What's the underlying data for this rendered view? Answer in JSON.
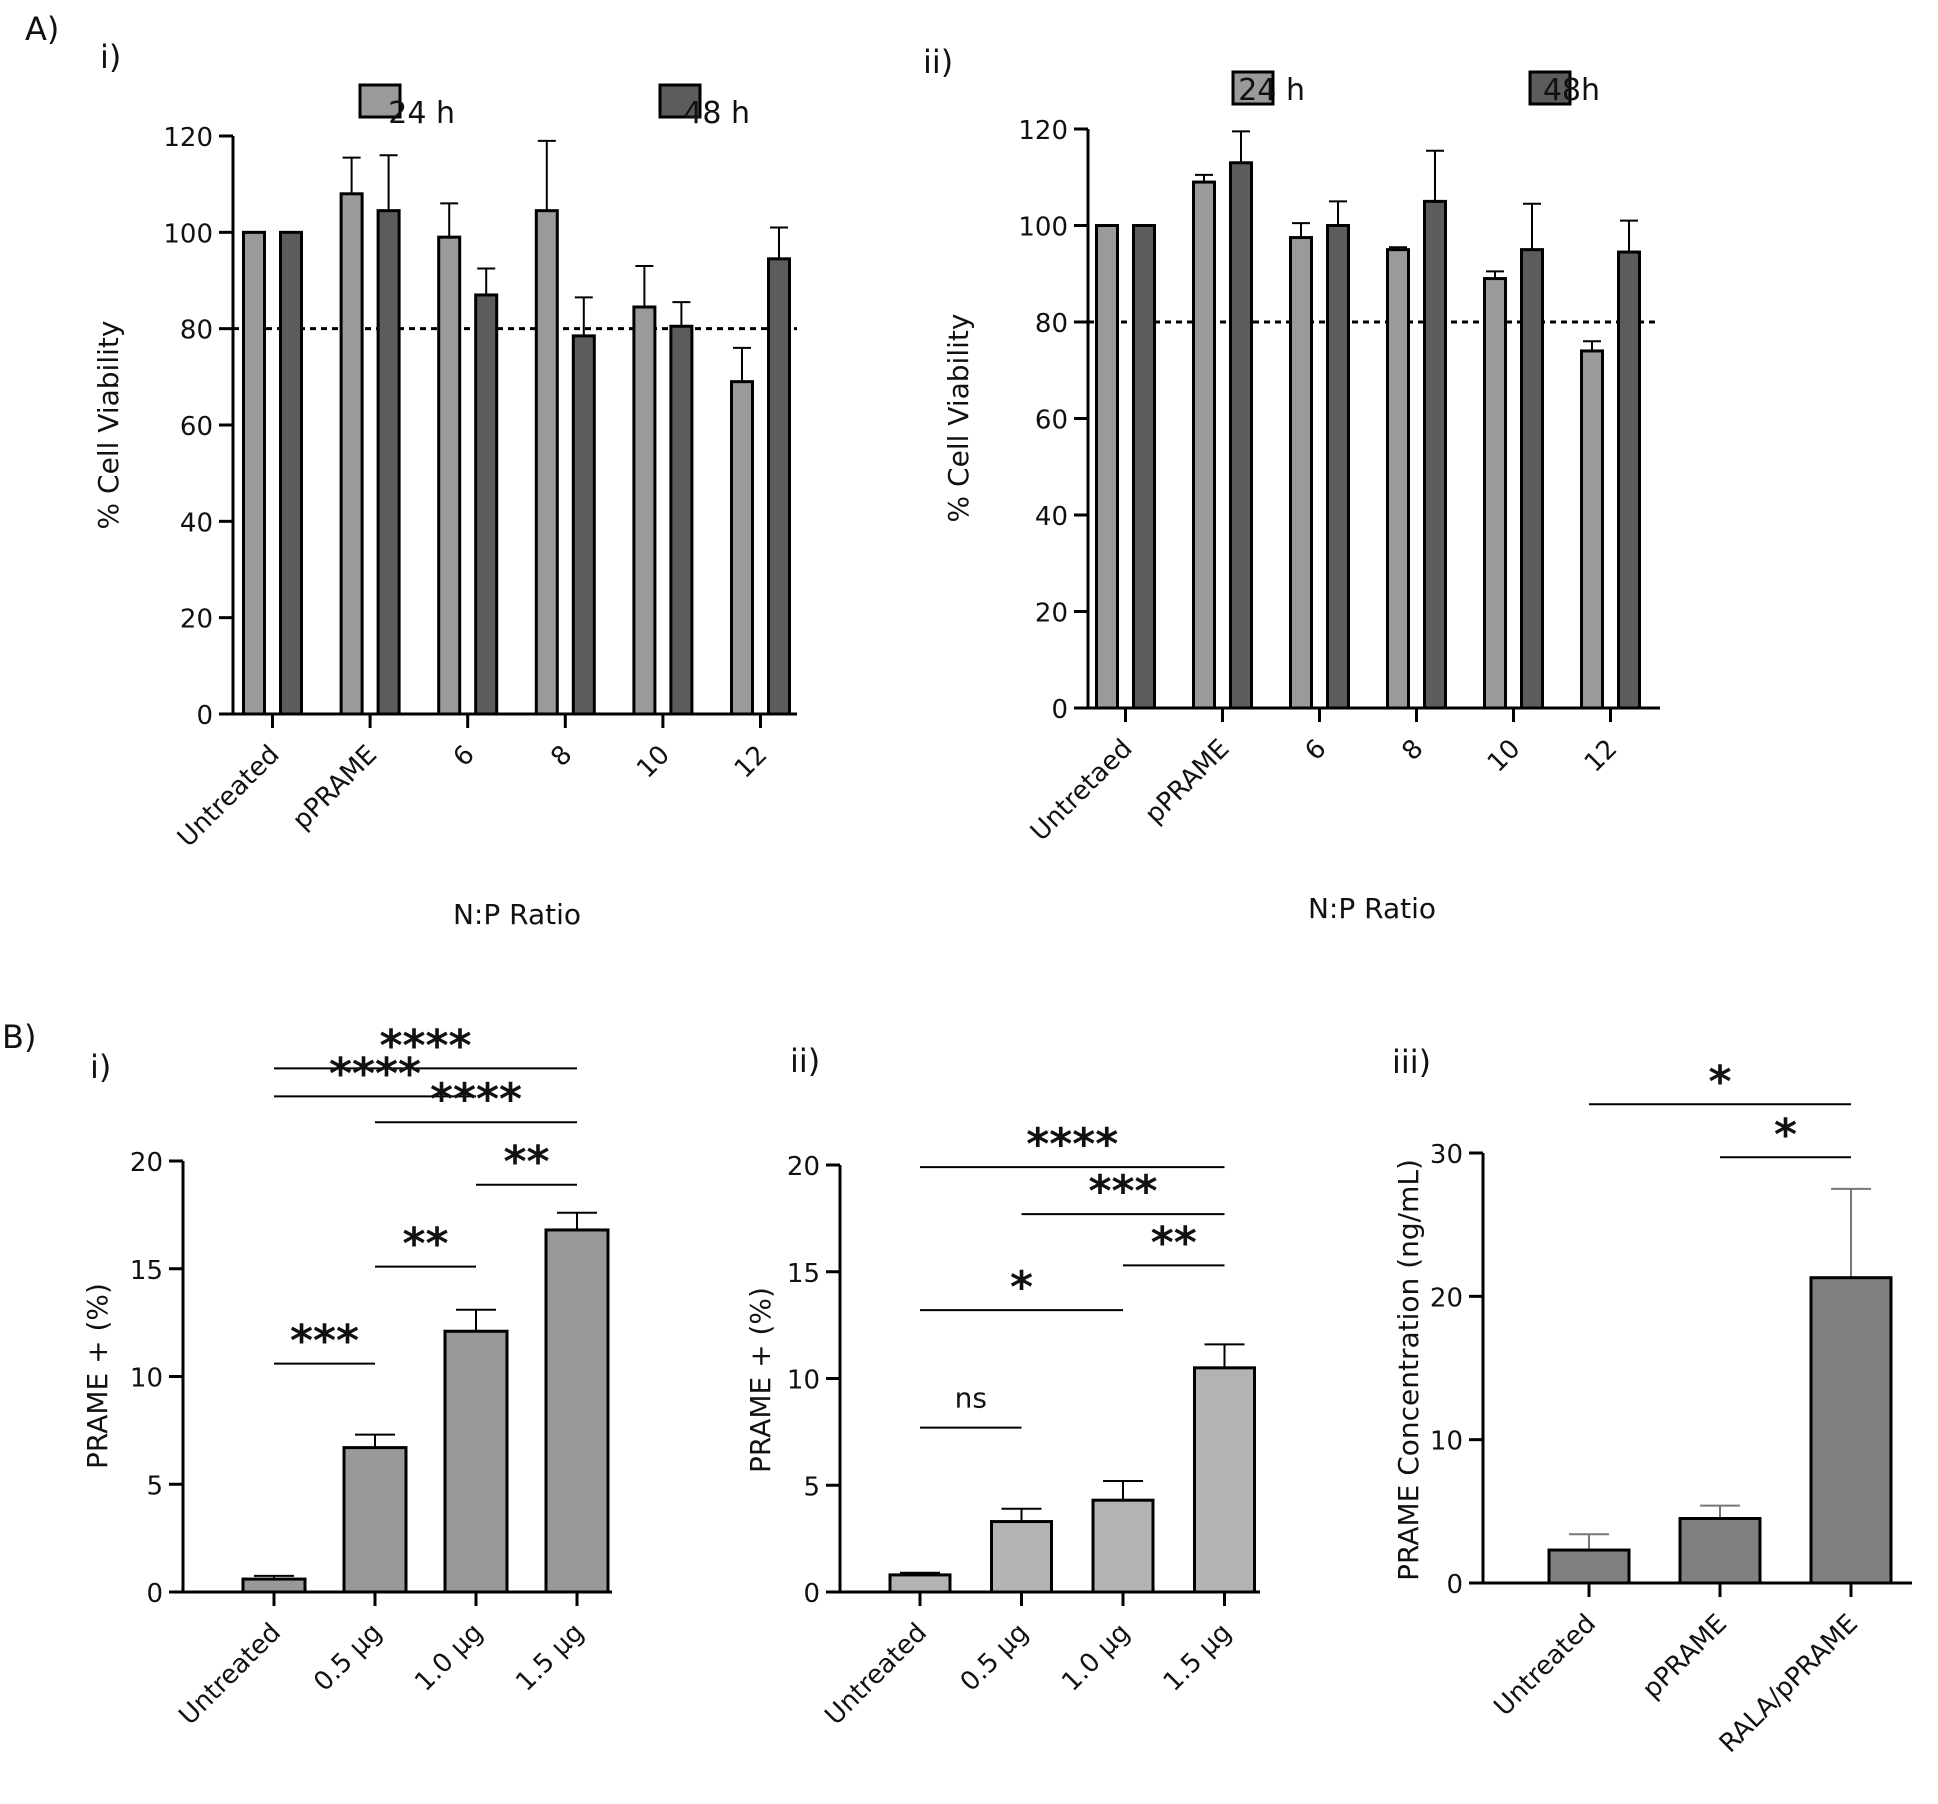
{
  "figure": {
    "section_a": "A)",
    "section_b": "B)"
  },
  "colors": {
    "gray_24h": "#9a9a9a",
    "gray_48h": "#5c5c5c",
    "b_i_bar": "#999999",
    "b_ii_bar": "#b3b3b3",
    "b_iii_bar": "#808080",
    "axis": "#000000"
  },
  "chart_data": [
    {
      "panel": "i)",
      "type": "bar",
      "categories": [
        "Untreated",
        "pPRAME",
        "6",
        "8",
        "10",
        "12"
      ],
      "series": [
        {
          "name": "24 h",
          "values": [
            100,
            108,
            99,
            104.5,
            84.5,
            69
          ],
          "errors": [
            0,
            7.5,
            7,
            14.5,
            8.5,
            7
          ]
        },
        {
          "name": "48 h",
          "values": [
            100,
            104.5,
            87,
            78.5,
            80.5,
            94.5
          ],
          "errors": [
            0,
            11.5,
            5.5,
            8,
            5,
            6.5
          ]
        }
      ],
      "xlabel": "N:P Ratio",
      "ylabel": "% Cell Viability",
      "ylim": [
        0,
        120
      ],
      "yticks": [
        0,
        20,
        40,
        60,
        80,
        100,
        120
      ],
      "reference_line": 80,
      "legend": "top"
    },
    {
      "panel": "ii)",
      "type": "bar",
      "categories": [
        "Untretaed",
        "pPRAME",
        "6",
        "8",
        "10",
        "12"
      ],
      "series": [
        {
          "name": "24 h",
          "values": [
            100,
            109,
            97.5,
            95,
            89,
            74
          ],
          "errors": [
            0,
            1.5,
            3,
            0.5,
            1.5,
            2
          ]
        },
        {
          "name": "48h",
          "values": [
            100,
            113,
            100,
            105,
            95,
            94.5
          ],
          "errors": [
            0,
            6.5,
            5,
            10.5,
            9.5,
            6.5
          ]
        }
      ],
      "xlabel": "N:P Ratio",
      "ylabel": "% Cell Viability",
      "ylim": [
        0,
        120
      ],
      "yticks": [
        0,
        20,
        40,
        60,
        80,
        100,
        120
      ],
      "reference_line": 80,
      "legend": "top"
    },
    {
      "panel": "i)",
      "type": "bar",
      "categories": [
        "Untreated",
        "0.5 μg",
        "1.0 μg",
        "1.5 μg"
      ],
      "values": [
        0.6,
        6.7,
        12.1,
        16.8
      ],
      "errors": [
        0.15,
        0.6,
        1.0,
        0.8
      ],
      "ylabel": "PRAME + (%)",
      "ylim": [
        0,
        20
      ],
      "yticks": [
        0,
        5,
        10,
        15,
        20
      ],
      "significance": [
        {
          "from": 0,
          "to": 3,
          "label": "****",
          "y": 24.3
        },
        {
          "from": 0,
          "to": 2,
          "label": "****",
          "y": 23.0
        },
        {
          "from": 1,
          "to": 3,
          "label": "****",
          "y": 21.8
        },
        {
          "from": 2,
          "to": 3,
          "label": "**",
          "y": 18.9
        },
        {
          "from": 1,
          "to": 2,
          "label": "**",
          "y": 15.1
        },
        {
          "from": 0,
          "to": 1,
          "label": "***",
          "y": 10.6
        }
      ]
    },
    {
      "panel": "ii)",
      "type": "bar",
      "categories": [
        "Untreated",
        "0.5 μg",
        "1.0 μg",
        "1.5 μg"
      ],
      "values": [
        0.8,
        3.3,
        4.3,
        10.5
      ],
      "errors": [
        0.1,
        0.6,
        0.9,
        1.1
      ],
      "ylabel": "PRAME + (%)",
      "ylim": [
        0,
        20
      ],
      "yticks": [
        0,
        5,
        10,
        15,
        20
      ],
      "significance": [
        {
          "from": 0,
          "to": 3,
          "label": "****",
          "y": 19.9
        },
        {
          "from": 1,
          "to": 3,
          "label": "***",
          "y": 17.7
        },
        {
          "from": 2,
          "to": 3,
          "label": "**",
          "y": 15.3
        },
        {
          "from": 0,
          "to": 2,
          "label": "*",
          "y": 13.2
        },
        {
          "from": 0,
          "to": 1,
          "label": "ns",
          "y": 7.7
        }
      ]
    },
    {
      "panel": "iii)",
      "type": "bar",
      "categories": [
        "Untreated",
        "pPRAME",
        "RALA/pPRAME"
      ],
      "values": [
        2.3,
        4.5,
        21.3
      ],
      "errors": [
        1.1,
        0.9,
        6.2
      ],
      "ylabel": "PRAME Concentration (ng/mL)",
      "ylim": [
        0,
        30
      ],
      "yticks": [
        0,
        10,
        20,
        30
      ],
      "significance": [
        {
          "from": 0,
          "to": 2,
          "label": "*",
          "y": 33.4
        },
        {
          "from": 1,
          "to": 2,
          "label": "*",
          "y": 29.7
        }
      ]
    }
  ]
}
